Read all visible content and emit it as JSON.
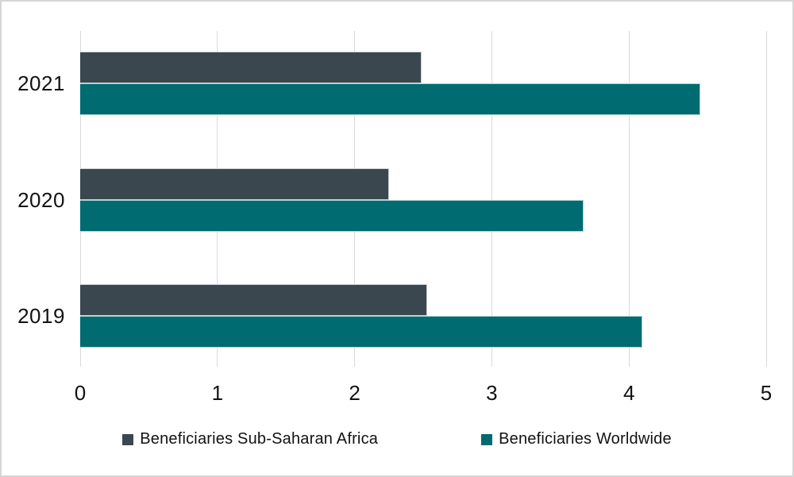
{
  "colors": {
    "background": "#ffffff",
    "frame_border": "#d5d5d5",
    "gridline": "#d9d9d9",
    "text": "#121212",
    "series1": "#3a474e",
    "series2": "#006b70"
  },
  "chart_data": {
    "type": "bar",
    "orientation": "horizontal",
    "categories": [
      "2021",
      "2020",
      "2019"
    ],
    "series": [
      {
        "name": "Beneficiaries Sub-Saharan Africa",
        "color": "#3a474e",
        "values": [
          2.49,
          2.25,
          2.53
        ]
      },
      {
        "name": "Beneficiaries Worldwide",
        "color": "#006b70",
        "values": [
          4.52,
          3.67,
          4.1
        ]
      }
    ],
    "xlabel": "",
    "ylabel": "",
    "xlim": [
      0,
      5
    ],
    "x_ticks": [
      0,
      1,
      2,
      3,
      4,
      5
    ],
    "grid": true,
    "legend_position": "bottom"
  }
}
